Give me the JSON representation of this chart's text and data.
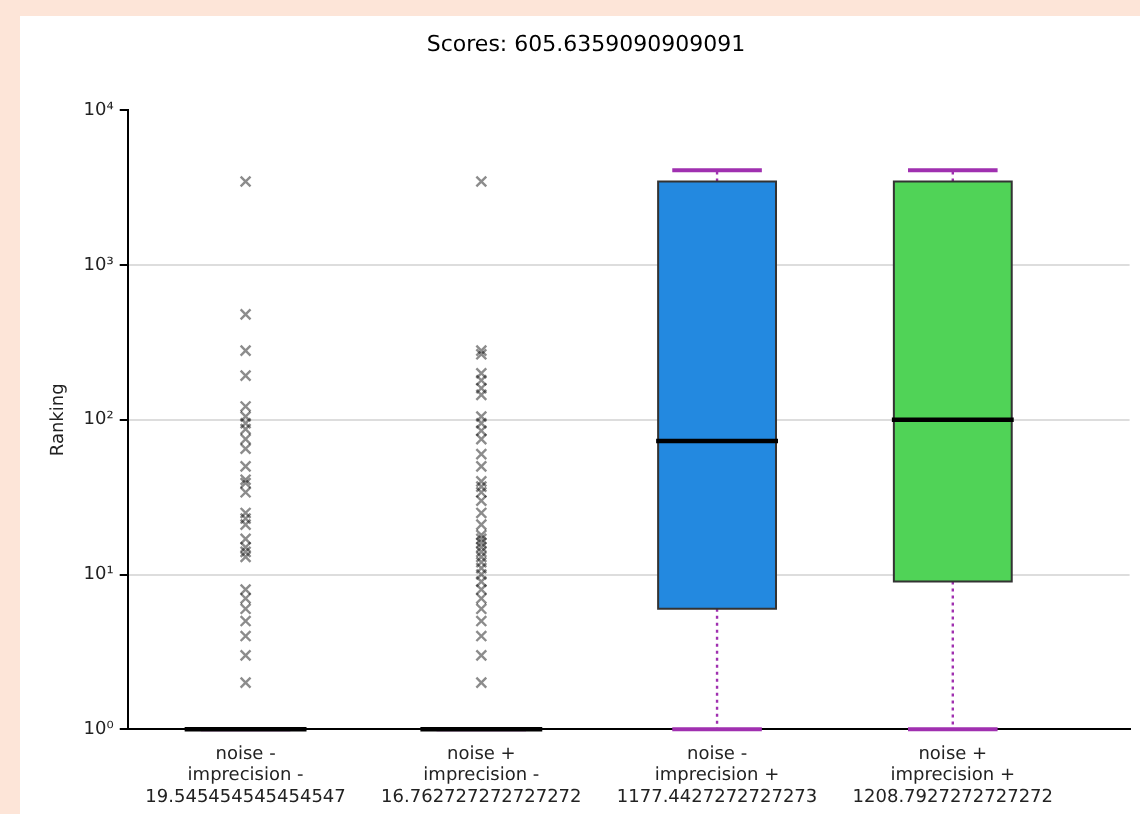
{
  "chart_data": {
    "type": "box",
    "title": "Scores: 605.6359090909091",
    "ylabel": "Ranking",
    "categories": [
      "noise - imprecision - 19.545454545454547",
      "noise + imprecision - 16.762727272727272",
      "noise - imprecision + 1177.4427272727273",
      "noise + imprecision + 1208.7927272727272"
    ],
    "colors": [
      null,
      null,
      "#2389e0",
      "#50d357"
    ],
    "boxes": [
      {
        "low": 1,
        "q1": 1,
        "median": 1,
        "q3": 1,
        "high": 1,
        "outliers": [
          3470,
          480,
          280,
          193,
          122,
          105,
          95,
          87,
          75,
          65,
          50,
          41,
          39,
          34,
          25,
          23,
          21,
          17,
          15,
          14,
          13,
          8,
          7,
          6,
          5,
          4,
          3,
          2
        ]
      },
      {
        "low": 1,
        "q1": 1,
        "median": 1,
        "q3": 1,
        "high": 1,
        "outliers": [
          3470,
          280,
          265,
          200,
          180,
          160,
          145,
          105,
          95,
          85,
          75,
          60,
          50,
          40,
          37,
          34,
          30,
          25,
          21,
          18,
          17,
          16,
          15,
          14,
          13,
          12,
          11,
          10,
          9,
          8,
          7,
          6,
          5,
          4,
          3,
          2
        ]
      },
      {
        "low": 1,
        "q1": 6,
        "median": 73,
        "q3": 3470,
        "high": 4100
      },
      {
        "low": 1,
        "q1": 9,
        "median": 100,
        "q3": 3470,
        "high": 4100
      }
    ],
    "log": true,
    "ylim": [
      1,
      10000
    ],
    "yticks": [
      {
        "value": 1,
        "label": "10⁰"
      },
      {
        "value": 10,
        "label": "10¹"
      },
      {
        "value": 100,
        "label": "10²"
      },
      {
        "value": 1000,
        "label": "10³"
      },
      {
        "value": 10000,
        "label": "10⁴"
      }
    ],
    "grid": "y",
    "marker": "cross",
    "legend": false
  }
}
